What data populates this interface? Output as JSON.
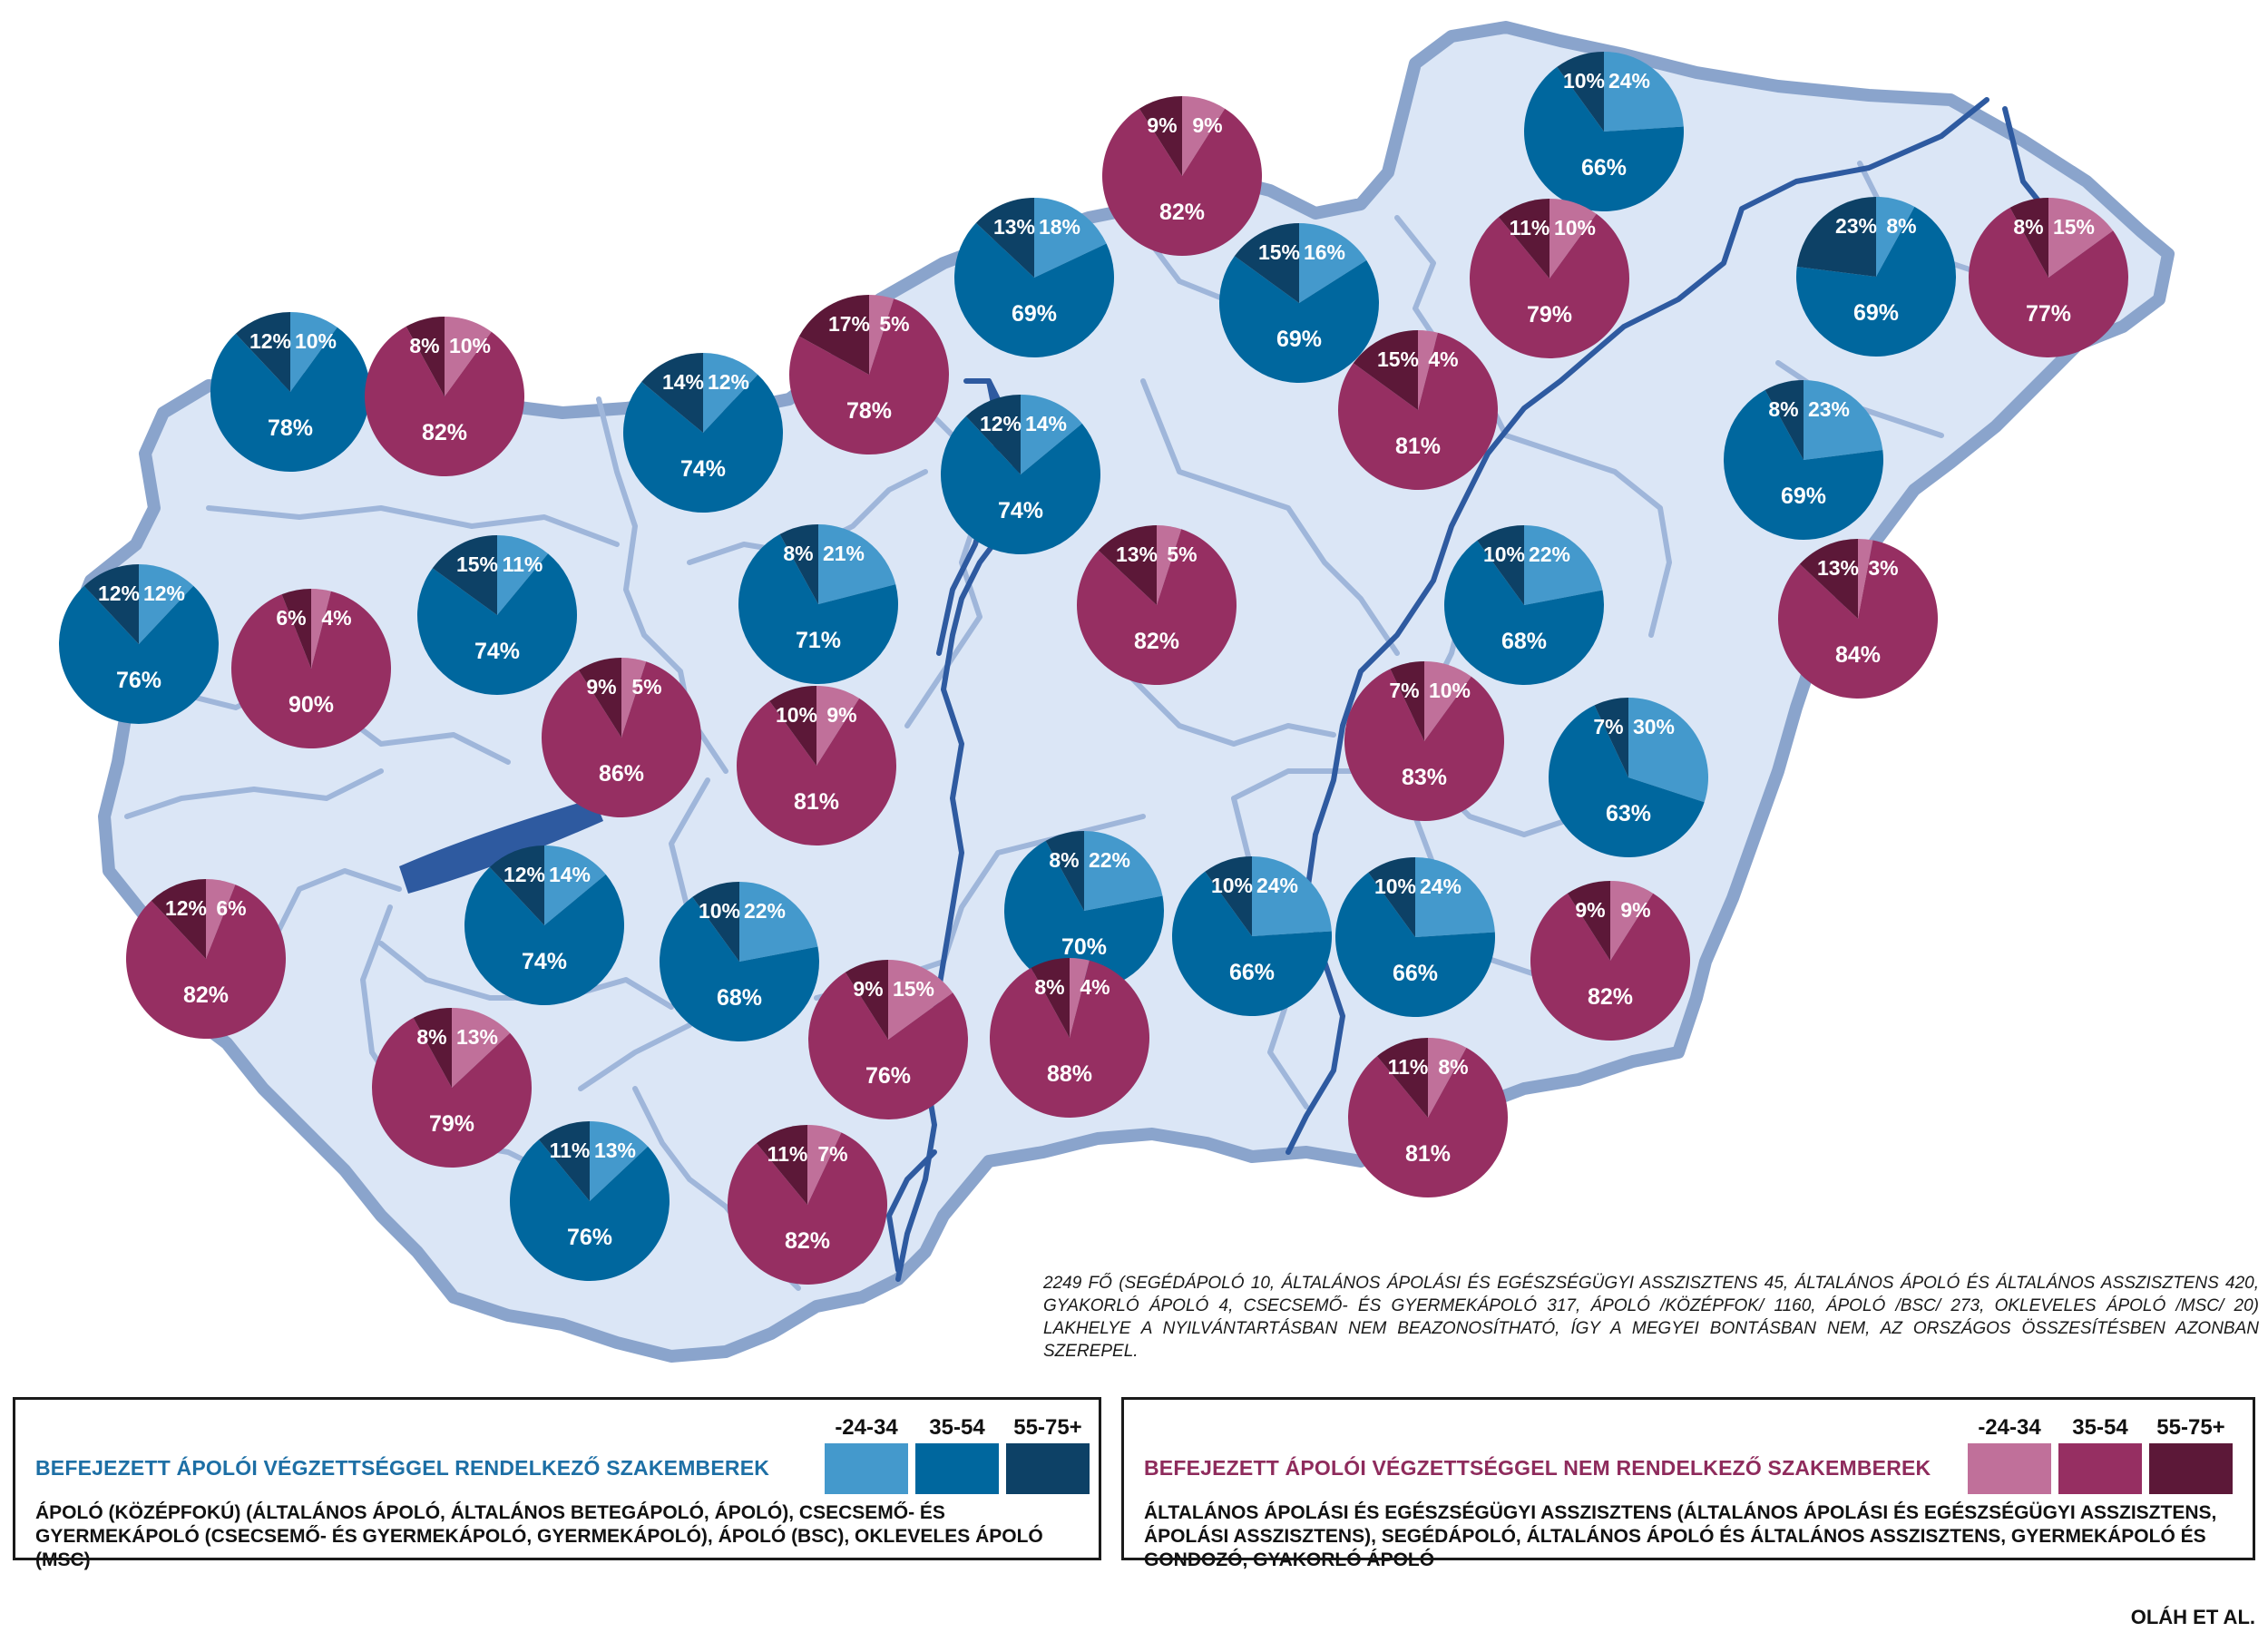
{
  "colors": {
    "map_fill": "#dbe6f6",
    "map_border": "#8aa4cc",
    "county_border": "#9fb6da",
    "river": "#2e5aa0",
    "lake": "#2e5aa0",
    "blue_young": "#4499cc",
    "blue_mid": "#00679e",
    "blue_old": "#0d4166",
    "purple_young": "#c0709a",
    "purple_mid": "#962f62",
    "purple_old": "#5c1838"
  },
  "pies": [
    {
      "group": "blue",
      "young": 10,
      "mid": 78,
      "old": 12,
      "labels": {
        "young": "10%",
        "mid": "78%",
        "old": "12%"
      }
    },
    {
      "group": "purple",
      "young": 10,
      "mid": 82,
      "old": 8,
      "labels": {
        "young": "10%",
        "mid": "82%",
        "old": "8%"
      }
    },
    {
      "group": "blue",
      "young": 12,
      "mid": 74,
      "old": 14,
      "labels": {
        "young": "12%",
        "mid": "74%",
        "old": "14%"
      }
    },
    {
      "group": "purple",
      "young": 5,
      "mid": 78,
      "old": 17,
      "labels": {
        "young": "5%",
        "mid": "78%",
        "old": "17%"
      }
    },
    {
      "group": "blue",
      "young": 18,
      "mid": 69,
      "old": 13,
      "labels": {
        "young": "18%",
        "mid": "69%",
        "old": "13%"
      }
    },
    {
      "group": "purple",
      "young": 9,
      "mid": 82,
      "old": 9,
      "labels": {
        "young": "9%",
        "mid": "82%",
        "old": "9%"
      }
    },
    {
      "group": "blue",
      "young": 24,
      "mid": 66,
      "old": 10,
      "labels": {
        "young": "24%",
        "mid": "66%",
        "old": "10%"
      }
    },
    {
      "group": "blue",
      "young": 16,
      "mid": 69,
      "old": 15,
      "labels": {
        "young": "16%",
        "mid": "69%",
        "old": "15%"
      }
    },
    {
      "group": "purple",
      "young": 10,
      "mid": 79,
      "old": 11,
      "labels": {
        "young": "10%",
        "mid": "79%",
        "old": "11%"
      }
    },
    {
      "group": "blue",
      "young": 8,
      "mid": 69,
      "old": 23,
      "labels": {
        "young": "8%",
        "mid": "69%",
        "old": "23%"
      }
    },
    {
      "group": "purple",
      "young": 15,
      "mid": 77,
      "old": 8,
      "labels": {
        "young": "15%",
        "mid": "77%",
        "old": "8%"
      }
    },
    {
      "group": "blue",
      "young": 12,
      "mid": 76,
      "old": 12,
      "labels": {
        "young": "12%",
        "mid": "76%",
        "old": "12%"
      }
    },
    {
      "group": "purple",
      "young": 4,
      "mid": 90,
      "old": 6,
      "labels": {
        "young": "4%",
        "mid": "90%",
        "old": "6%"
      }
    },
    {
      "group": "blue",
      "young": 11,
      "mid": 74,
      "old": 15,
      "labels": {
        "young": "11%",
        "mid": "74%",
        "old": "15%"
      }
    },
    {
      "group": "blue",
      "young": 21,
      "mid": 71,
      "old": 8,
      "labels": {
        "young": "21%",
        "mid": "71%",
        "old": "8%"
      }
    },
    {
      "group": "blue",
      "young": 14,
      "mid": 74,
      "old": 12,
      "labels": {
        "young": "14%",
        "mid": "74%",
        "old": "12%"
      }
    },
    {
      "group": "purple",
      "young": 4,
      "mid": 81,
      "old": 15,
      "labels": {
        "young": "4%",
        "mid": "81%",
        "old": "15%"
      }
    },
    {
      "group": "blue",
      "young": 23,
      "mid": 69,
      "old": 8,
      "labels": {
        "young": "23%",
        "mid": "69%",
        "old": "8%"
      }
    },
    {
      "group": "purple",
      "young": 5,
      "mid": 82,
      "old": 13,
      "labels": {
        "young": "5%",
        "mid": "82%",
        "old": "13%"
      }
    },
    {
      "group": "blue",
      "young": 22,
      "mid": 68,
      "old": 10,
      "labels": {
        "young": "22%",
        "mid": "68%",
        "old": "10%"
      }
    },
    {
      "group": "purple",
      "young": 3,
      "mid": 84,
      "old": 13,
      "labels": {
        "young": "3%",
        "mid": "84%",
        "old": "13%"
      }
    },
    {
      "group": "purple",
      "young": 5,
      "mid": 86,
      "old": 9,
      "labels": {
        "young": "5%",
        "mid": "86%",
        "old": "9%"
      }
    },
    {
      "group": "purple",
      "young": 9,
      "mid": 81,
      "old": 10,
      "labels": {
        "young": "9%",
        "mid": "81%",
        "old": "10%"
      }
    },
    {
      "group": "purple",
      "young": 10,
      "mid": 83,
      "old": 7,
      "labels": {
        "young": "10%",
        "mid": "83%",
        "old": "7%"
      }
    },
    {
      "group": "blue",
      "young": 30,
      "mid": 63,
      "old": 7,
      "labels": {
        "young": "30%",
        "mid": "63%",
        "old": "7%"
      }
    },
    {
      "group": "blue",
      "young": 24,
      "mid": 66,
      "old": 10,
      "labels": {
        "young": "24%",
        "mid": "66%",
        "old": "10%"
      }
    },
    {
      "group": "purple",
      "young": 6,
      "mid": 82,
      "old": 12,
      "labels": {
        "young": "6%",
        "mid": "82%",
        "old": "12%"
      }
    },
    {
      "group": "blue",
      "young": 14,
      "mid": 74,
      "old": 12,
      "labels": {
        "young": "14%",
        "mid": "74%",
        "old": "12%"
      }
    },
    {
      "group": "blue",
      "young": 22,
      "mid": 68,
      "old": 10,
      "labels": {
        "young": "22%",
        "mid": "68%",
        "old": "10%"
      }
    },
    {
      "group": "blue",
      "young": 22,
      "mid": 70,
      "old": 8,
      "labels": {
        "young": "22%",
        "mid": "70%",
        "old": "8%"
      }
    },
    {
      "group": "blue",
      "young": 24,
      "mid": 66,
      "old": 10,
      "labels": {
        "young": "24%",
        "mid": "66%",
        "old": "10%"
      }
    },
    {
      "group": "purple",
      "young": 9,
      "mid": 82,
      "old": 9,
      "labels": {
        "young": "9%",
        "mid": "82%",
        "old": "9%"
      }
    },
    {
      "group": "purple",
      "young": 13,
      "mid": 79,
      "old": 8,
      "labels": {
        "young": "13%",
        "mid": "79%",
        "old": "8%"
      }
    },
    {
      "group": "purple",
      "young": 15,
      "mid": 76,
      "old": 9,
      "labels": {
        "young": "15%",
        "mid": "76%",
        "old": "9%"
      }
    },
    {
      "group": "purple",
      "young": 4,
      "mid": 88,
      "old": 8,
      "labels": {
        "young": "4%",
        "mid": "88%",
        "old": "8%"
      }
    },
    {
      "group": "blue",
      "young": 13,
      "mid": 76,
      "old": 11,
      "labels": {
        "young": "13%",
        "mid": "76%",
        "old": "11%"
      }
    },
    {
      "group": "purple",
      "young": 7,
      "mid": 82,
      "old": 11,
      "labels": {
        "young": "7%",
        "mid": "82%",
        "old": "11%"
      }
    },
    {
      "group": "purple",
      "young": 8,
      "mid": 81,
      "old": 11,
      "labels": {
        "young": "8%",
        "mid": "81%",
        "old": "11%"
      }
    }
  ],
  "footnote": "2249 fő (segédápoló 10, általános ápolási és egészségügyi asszisztens 45, általános ápoló és általános asszisztens 420, gyakorló ápoló 4, csecsemő- és gyermekápoló 317, ápoló /középfok/ 1160, ápoló /BSc/ 273, okleveles ápoló /MSc/ 20) lakhelye a nyilvántartásban nem beazonosítható, így a megyei bontásban nem, az országos összesítésben azonban szerepel.",
  "legend_left": {
    "title": "BEFEJEZETT ÁPOLÓI VÉGZETTSÉGGEL RENDELKEZŐ SZAKEMBEREK",
    "description": "ÁPOLÓ (KÖZÉPFOKÚ) (ÁLTALÁNOS ÁPOLÓ, ÁLTALÁNOS BETEGÁPOLÓ, ÁPOLÓ), CSECSEMŐ- ÉS GYERMEKÁPOLÓ (CSECSEMŐ- ÉS GYERMEKÁPOLÓ, GYERMEKÁPOLÓ), ÁPOLÓ (BSC), OKLEVELES ÁPOLÓ (MSC)",
    "age_labels": [
      "-24-34",
      "35-54",
      "55-75+"
    ]
  },
  "legend_right": {
    "title": "BEFEJEZETT ÁPOLÓI VÉGZETTSÉGGEL NEM RENDELKEZŐ SZAKEMBEREK",
    "description": "ÁLTALÁNOS ÁPOLÁSI ÉS EGÉSZSÉGÜGYI ASSZISZTENS (ÁLTALÁNOS ÁPOLÁSI ÉS EGÉSZSÉGÜGYI ASSZISZTENS, ÁPOLÁSI ASSZISZTENS), SEGÉDÁPOLÓ, ÁLTALÁNOS ÁPOLÓ ÉS ÁLTALÁNOS ASSZISZTENS, GYERMEKÁPOLÓ ÉS GONDOZÓ, GYAKORLÓ ÁPOLÓ",
    "age_labels": [
      "-24-34",
      "35-54",
      "55-75+"
    ]
  },
  "credit": "OLÁH ET AL."
}
